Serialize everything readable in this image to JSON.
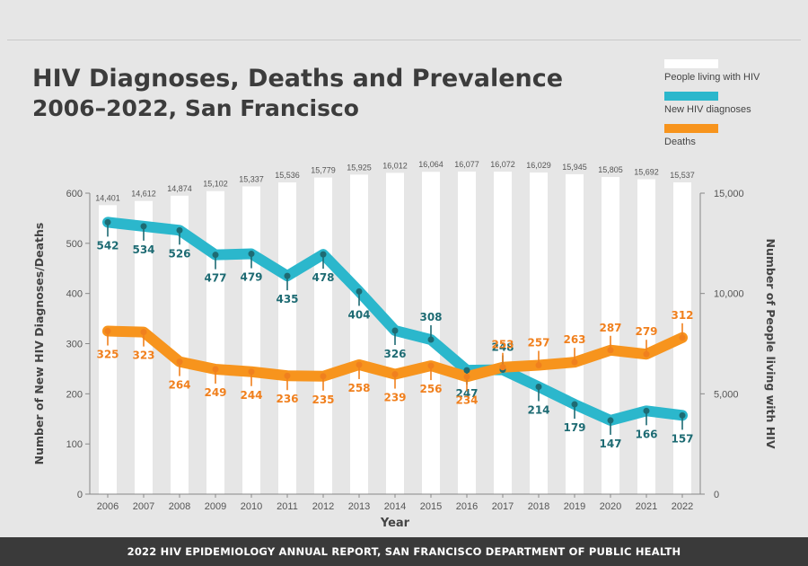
{
  "header": {
    "title": "HIV Diagnoses, Deaths and Prevalence",
    "subtitle": "2006–2022, San Francisco"
  },
  "legend": [
    {
      "label": "People living with HIV",
      "color": "#ffffff"
    },
    {
      "label": "New HIV diagnoses",
      "color": "#2bb7cc"
    },
    {
      "label": "Deaths",
      "color": "#f7941d"
    }
  ],
  "footer": {
    "text": "2022 HIV EPIDEMIOLOGY ANNUAL REPORT, SAN FRANCISCO DEPARTMENT OF PUBLIC HEALTH"
  },
  "chart_data": {
    "type": "bar",
    "title": "HIV Diagnoses, Deaths and Prevalence",
    "subtitle": "2006–2022, San Francisco",
    "xlabel": "Year",
    "ylabel_left": "Number of New HIV Diagnoses/Deaths",
    "ylabel_right": "Number of People living with HIV",
    "categories": [
      "2006",
      "2007",
      "2008",
      "2009",
      "2010",
      "2011",
      "2012",
      "2013",
      "2014",
      "2015",
      "2016",
      "2017",
      "2018",
      "2019",
      "2020",
      "2021",
      "2022"
    ],
    "ylim_left": [
      0,
      600
    ],
    "yticks_left": [
      0,
      100,
      200,
      300,
      400,
      500,
      600
    ],
    "ylim_right": [
      0,
      15000
    ],
    "yticks_right": [
      {
        "value": 0,
        "label": "0"
      },
      {
        "value": 5000,
        "label": "5,000"
      },
      {
        "value": 10000,
        "label": "10,000"
      },
      {
        "value": 15000,
        "label": "15,000"
      }
    ],
    "grid": false,
    "legend_position": "top-right",
    "series": [
      {
        "name": "People living with HIV",
        "kind": "bar",
        "axis": "right",
        "color": "#ffffff",
        "values": [
          14401,
          14612,
          14874,
          15102,
          15337,
          15536,
          15779,
          15925,
          16012,
          16064,
          16077,
          16072,
          16029,
          15945,
          15805,
          15692,
          15537
        ],
        "labels": [
          "14,401",
          "14,612",
          "14,874",
          "15,102",
          "15,337",
          "15,536",
          "15,779",
          "15,925",
          "16,012",
          "16,064",
          "16,077",
          "16,072",
          "16,029",
          "15,945",
          "15,805",
          "15,692",
          "15,537"
        ]
      },
      {
        "name": "New HIV diagnoses",
        "kind": "line",
        "axis": "left",
        "color": "#2bb7cc",
        "label_color": "#1e6b73",
        "values": [
          542,
          534,
          526,
          477,
          479,
          435,
          478,
          404,
          326,
          308,
          247,
          248,
          214,
          179,
          147,
          166,
          157
        ]
      },
      {
        "name": "Deaths",
        "kind": "line",
        "axis": "left",
        "color": "#f7941d",
        "label_color": "#f0801e",
        "values": [
          325,
          323,
          264,
          249,
          244,
          236,
          235,
          258,
          239,
          256,
          234,
          253,
          257,
          263,
          287,
          279,
          312
        ]
      }
    ]
  }
}
